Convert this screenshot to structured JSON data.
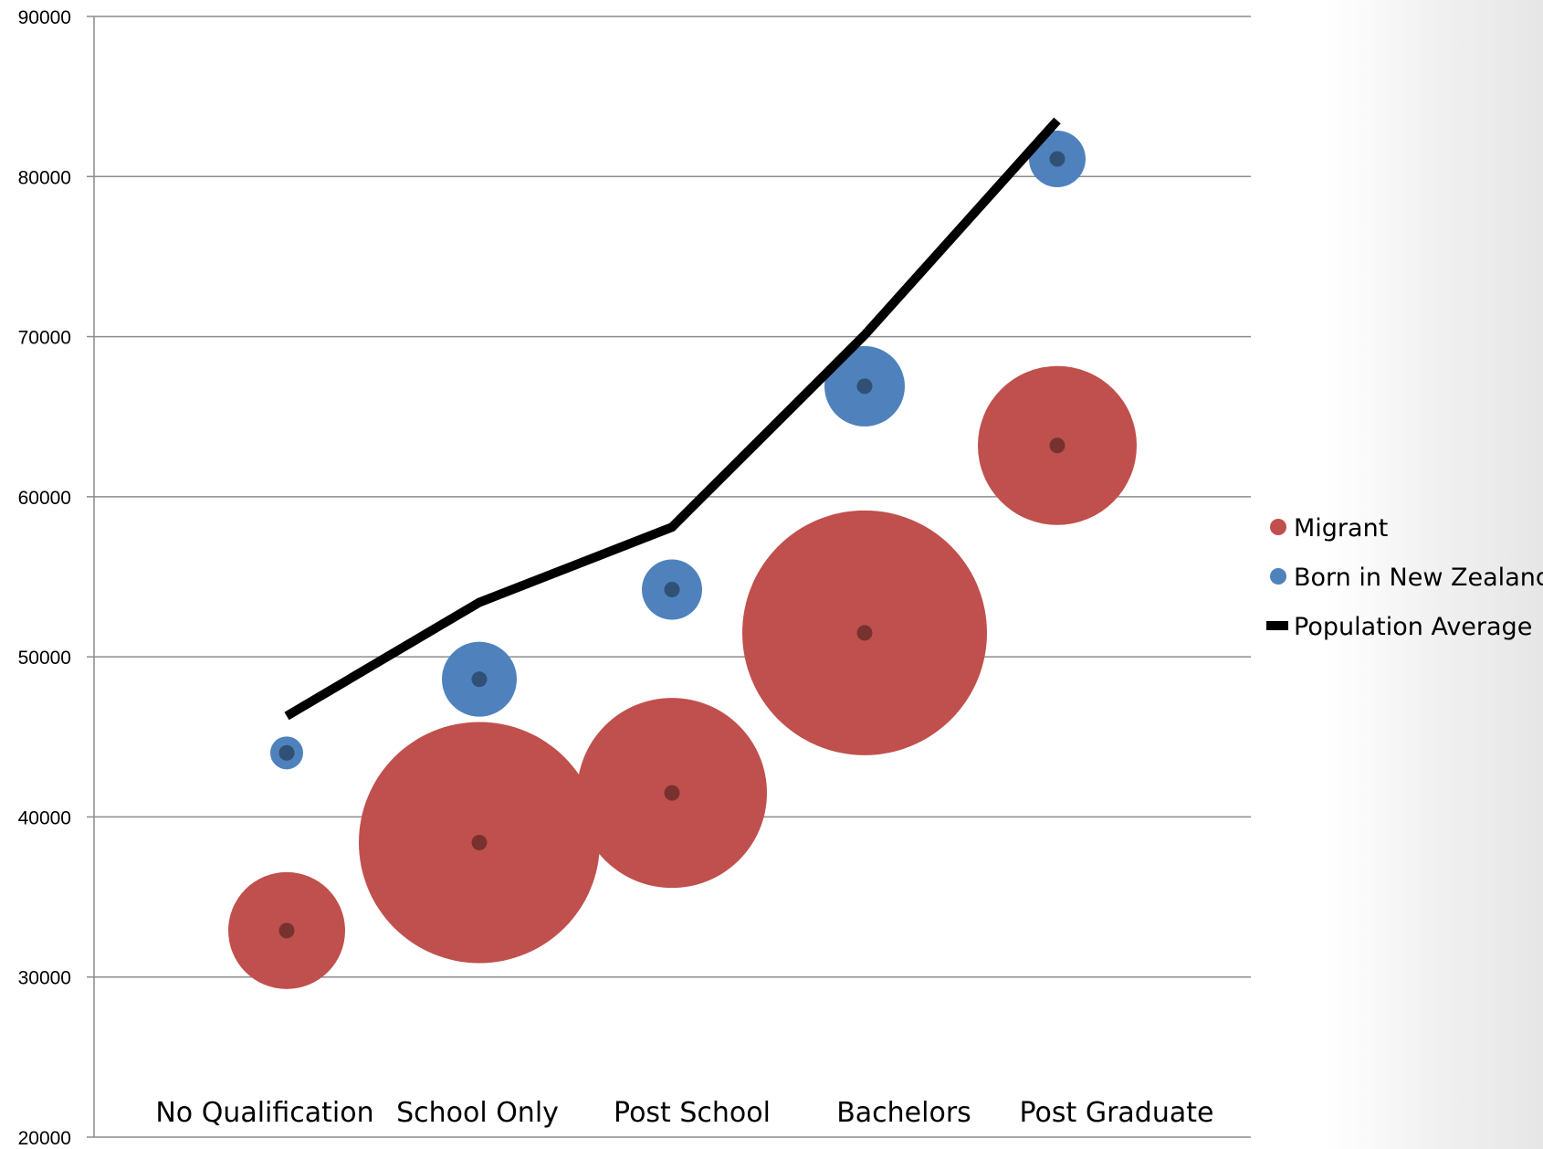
{
  "chart_data": {
    "type": "bubble",
    "title": "",
    "xlabel": "",
    "ylabel": "",
    "ylim": [
      20000,
      90000
    ],
    "y_ticks": [
      "20000",
      "30000",
      "40000",
      "50000",
      "60000",
      "70000",
      "80000",
      "90000"
    ],
    "categories": [
      "No Qualification",
      "School Only",
      "Post School",
      "Bachelors",
      "Post Graduate"
    ],
    "grid": true,
    "legend": "right",
    "series": [
      {
        "name": "Migrant",
        "kind": "bubble",
        "color": "#c0504d",
        "values": [
          32900,
          38400,
          41500,
          51500,
          63200
        ],
        "sizes": [
          64,
          132,
          104,
          134,
          87
        ]
      },
      {
        "name": "Born in New Zealand",
        "kind": "bubble",
        "color": "#4f81bd",
        "values": [
          44000,
          48600,
          54200,
          66900,
          81100
        ],
        "sizes": [
          18,
          41,
          33,
          44,
          31
        ]
      },
      {
        "name": "Population Average",
        "kind": "line",
        "color": "#000000",
        "values": [
          46300,
          53400,
          58100,
          70100,
          83500
        ]
      }
    ]
  }
}
